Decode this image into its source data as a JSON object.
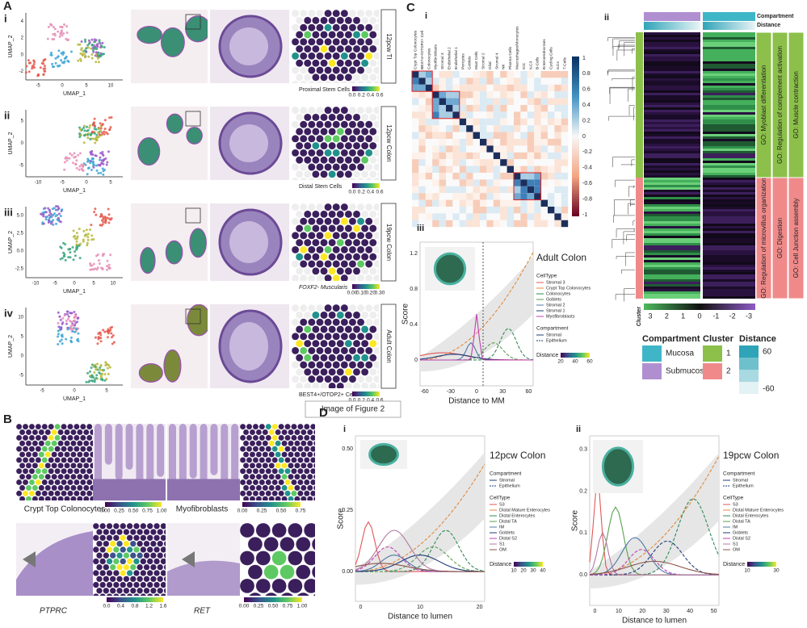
{
  "tooltip": "Image of Figure 2",
  "panel_a": {
    "letter": "A",
    "rows": [
      {
        "numeral": "i",
        "x_label": "UMAP_1",
        "y_label": "UMAP_2",
        "x_ticks": [
          "-5",
          "0",
          "5",
          "10"
        ],
        "y_ticks": [
          "4",
          "2",
          "0",
          "-2"
        ],
        "sample": "12pcw TI",
        "colorbar_label": "Proximal Stem Cells",
        "colorbar_ticks": [
          "0.0",
          "0.2",
          "0.4",
          "0.6"
        ]
      },
      {
        "numeral": "ii",
        "x_label": "UMAP_1",
        "y_label": "UMAP_2",
        "x_ticks": [
          "-10",
          "-5",
          "0",
          "5"
        ],
        "y_ticks": [
          "5",
          "0",
          "-5"
        ],
        "sample": "12pcw Colon",
        "colorbar_label": "Distal Stem Cells",
        "colorbar_ticks": [
          "0.0",
          "0.2",
          "0.4",
          "0.6"
        ]
      },
      {
        "numeral": "iii",
        "x_label": "UMAP_1",
        "y_label": "UMAP_2",
        "x_ticks": [
          "-10",
          "-5",
          "0",
          "5",
          "10"
        ],
        "y_ticks": [
          "5.0",
          "2.5",
          "0.0",
          "-2.5"
        ],
        "sample": "19pcw Colon",
        "colorbar_label": "FOXF2- Muscularis",
        "colorbar_ticks": [
          "0.00",
          "0.10",
          "0.20",
          "0.30"
        ]
      },
      {
        "numeral": "iv",
        "x_label": "UMAP_1",
        "y_label": "UMAP_2",
        "x_ticks": [
          "-5",
          "0",
          "5"
        ],
        "y_ticks": [
          "10",
          "5",
          "0",
          "-5"
        ],
        "sample": "Adult Colon",
        "colorbar_label": "BEST4+/OTOP2+ Cell",
        "colorbar_ticks": [
          "0.0",
          "0.2",
          "0.4",
          "0.6"
        ]
      }
    ]
  },
  "panel_b": {
    "letter": "B",
    "top": [
      {
        "label": "Crypt Top Colonocytes",
        "colorbar_ticks": [
          "0.00",
          "0.25",
          "0.50",
          "0.75",
          "1.00"
        ]
      },
      {
        "label": "Myofibroblasts",
        "colorbar_ticks": [
          "0.00",
          "0.25",
          "0.50",
          "0.75"
        ]
      }
    ],
    "bottom": [
      {
        "label": "PTPRC",
        "colorbar_ticks": [
          "0.0",
          "0.4",
          "0.8",
          "1.2",
          "1.6"
        ]
      },
      {
        "label": "RET",
        "colorbar_ticks": [
          "0.00",
          "0.25",
          "0.50",
          "0.75",
          "1.00"
        ]
      }
    ]
  },
  "panel_c": {
    "letter": "C",
    "heatmap": {
      "numeral": "i",
      "labels": [
        "Crypt Top Colonocytes",
        "BEST4+/OTOP2+ Cell",
        "Colonocytes",
        "Myofibroblasts",
        "Stromal 3",
        "Endothelial 2",
        "Endothelial 1",
        "Pericytes",
        "Goblets",
        "Mast Cells",
        "Stromal 2",
        "Glial",
        "Stromal 4",
        "NK",
        "Plasma Cells",
        "Macrophages/Monocytes",
        "ICC",
        "ILC3",
        "B-Cells",
        "Enteroendocrines",
        "Cycling Cells",
        "ILCs",
        "T-Cells"
      ],
      "colorbar_ticks": [
        1,
        0.8,
        0.6,
        0.4,
        0.2,
        0,
        -0.2,
        -0.4,
        -0.6,
        -0.8,
        -1
      ]
    },
    "clusters": {
      "numeral": "ii",
      "top_bars": [
        "Compartment",
        "Distance"
      ],
      "go_terms": [
        [
          "GO: Myoblast differentiation",
          "GO: Regulation of complement activation",
          "GO: Muscle contraction"
        ],
        [
          "GO: Regulation of microvillus organization",
          "GO: Digestion",
          "GO: Cell Junction assembly"
        ]
      ],
      "axis_label": "Cluster",
      "scale_ticks": [
        3,
        2,
        1,
        0,
        -1,
        -2,
        -3
      ],
      "legend": {
        "compartment": {
          "title": "Compartment",
          "items": [
            "Mucosa",
            "Submucosa"
          ]
        },
        "cluster": {
          "title": "Cluster",
          "items": [
            1,
            2
          ]
        },
        "distance": {
          "title": "Distance",
          "ticks": [
            60,
            -60
          ]
        }
      }
    },
    "profile": {
      "numeral": "iii",
      "title": "Adult Colon",
      "y_label": "Score",
      "x_label": "Distance to MM",
      "y_ticks": [
        "1.2",
        "0.8",
        "0.4",
        "0"
      ],
      "x_ticks": [
        "-60",
        "-30",
        "0",
        "30",
        "60"
      ],
      "celltype_title": "CellType",
      "celltypes": [
        "Stromal 3",
        "Crypt Top Colonocytes",
        "Colonocytes",
        "Goblets",
        "Stromal 2",
        "Stromal 1",
        "Myofibroblasts"
      ],
      "compartment_title": "Compartment",
      "compartments": [
        "Stromal",
        "Epithelium"
      ],
      "distance_title": "Distance",
      "distance_ticks": [
        "20",
        "40",
        "60"
      ]
    }
  },
  "panel_d": {
    "letter": "D",
    "plots": [
      {
        "numeral": "i",
        "title": "12pcw Colon",
        "y_label": "Score",
        "x_label": "Distance to lumen",
        "y_ticks": [
          "0.50",
          "0.25",
          "0.00"
        ],
        "x_ticks": [
          "0",
          "10",
          "20"
        ],
        "compartment_title": "Compartment",
        "compartments": [
          "Stromal",
          "Epithelium"
        ],
        "celltype_title": "CellType",
        "celltypes": [
          "S3",
          "Distal Mature Enterocytes",
          "Distal Enterocytes",
          "Distal TA",
          "IM",
          "Goblets",
          "Distal S2",
          "S1",
          "OM"
        ],
        "distance_title": "Distance",
        "distance_ticks": [
          "10",
          "20",
          "30",
          "40"
        ]
      },
      {
        "numeral": "ii",
        "title": "19pcw Colon",
        "y_label": "Score",
        "x_label": "Distance to lumen",
        "y_ticks": [
          "0.3",
          "0.2",
          "0.1",
          "0.0"
        ],
        "x_ticks": [
          "0",
          "10",
          "20",
          "30",
          "40",
          "50"
        ],
        "compartment_title": "Compartment",
        "compartments": [
          "Stromal",
          "Epithelium"
        ],
        "celltype_title": "CellType",
        "celltypes": [
          "S3",
          "Distal Mature Enterocytes",
          "Distal Enterocytes",
          "Distal TA",
          "IM",
          "Goblets",
          "Distal S2",
          "S1",
          "OM"
        ],
        "distance_title": "Distance",
        "distance_ticks": [
          "10",
          "30"
        ]
      }
    ]
  }
}
